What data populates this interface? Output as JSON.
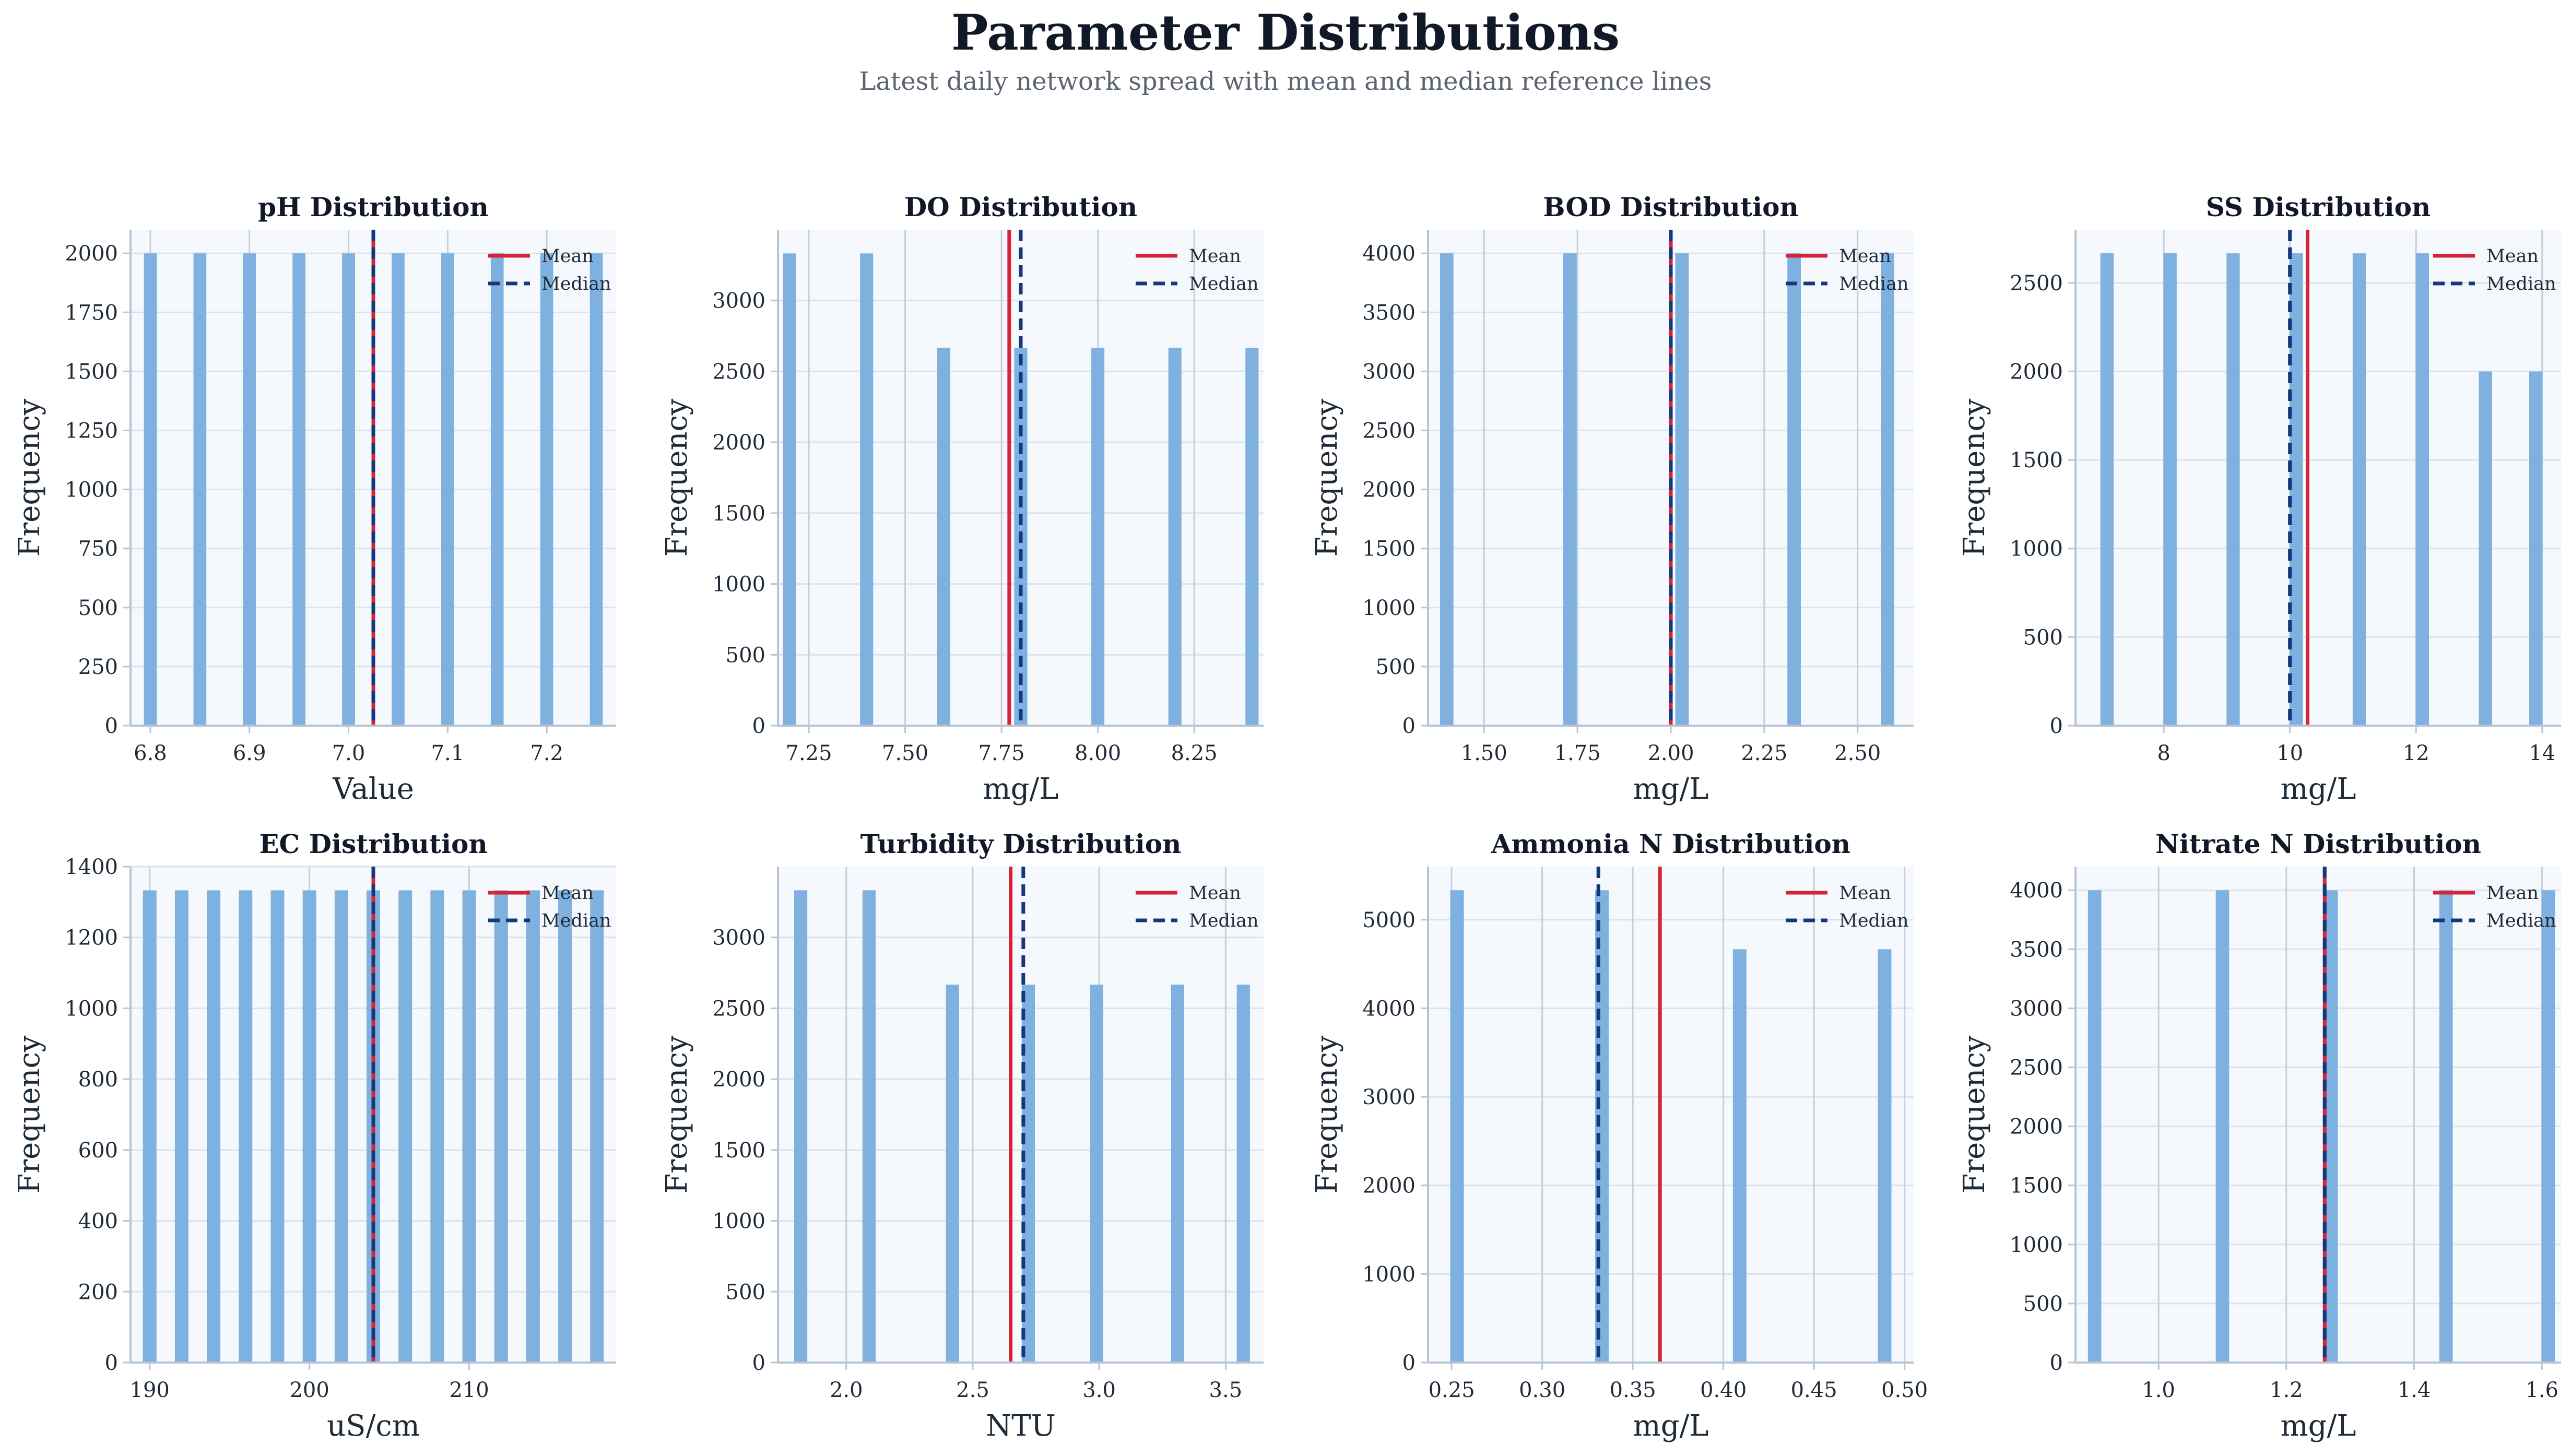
{
  "figure": {
    "title": "Parameter Distributions",
    "subtitle": "Latest daily network spread with mean and median reference lines"
  },
  "colors": {
    "bar": "#7eb0e0",
    "plot_bg": "#f5f9fe",
    "grid": "#dde3ea",
    "axis": "#b8c4d2",
    "mean": "#d62336",
    "median": "#14387a",
    "text": "#1f2a37"
  },
  "legend": {
    "mean_label": "Mean",
    "median_label": "Median",
    "placement": "top-right"
  },
  "ylabel": "Frequency",
  "chart_data": [
    {
      "type": "histogram",
      "title": "pH Distribution",
      "xlabel": "Value",
      "xlim": [
        6.78,
        7.27
      ],
      "ylim": [
        0,
        2100
      ],
      "xticks": [
        6.8,
        6.9,
        7.0,
        7.1,
        7.2
      ],
      "xtick_labels": [
        "6.8",
        "6.9",
        "7.0",
        "7.1",
        "7.2"
      ],
      "yticks": [
        0,
        250,
        500,
        750,
        1000,
        1250,
        1500,
        1750,
        2000
      ],
      "yticks_labels": [
        "0",
        "250",
        "500",
        "750",
        "1000",
        "1250",
        "1500",
        "1750",
        "2000"
      ],
      "bin_width": 0.013,
      "bars": [
        [
          6.8,
          2000
        ],
        [
          6.85,
          2000
        ],
        [
          6.9,
          2000
        ],
        [
          6.95,
          2000
        ],
        [
          7.0,
          2000
        ],
        [
          7.05,
          2000
        ],
        [
          7.1,
          2000
        ],
        [
          7.15,
          2000
        ],
        [
          7.2,
          2000
        ],
        [
          7.25,
          2000
        ]
      ],
      "mean": 7.025,
      "median": 7.025,
      "grid": true
    },
    {
      "type": "histogram",
      "title": "DO Distribution",
      "xlabel": "mg/L",
      "xlim": [
        7.17,
        8.43
      ],
      "ylim": [
        0,
        3500
      ],
      "xticks": [
        7.25,
        7.5,
        7.75,
        8.0,
        8.25
      ],
      "xtick_labels": [
        "7.25",
        "7.50",
        "7.75",
        "8.00",
        "8.25"
      ],
      "yticks": [
        0,
        500,
        1000,
        1500,
        2000,
        2500,
        3000
      ],
      "yticks_labels": [
        "0",
        "500",
        "1000",
        "1500",
        "2000",
        "2500",
        "3000"
      ],
      "bin_width": 0.034,
      "bars": [
        [
          7.2,
          3333
        ],
        [
          7.4,
          3333
        ],
        [
          7.6,
          2667
        ],
        [
          7.8,
          2667
        ],
        [
          8.0,
          2667
        ],
        [
          8.2,
          2667
        ],
        [
          8.4,
          2667
        ]
      ],
      "mean": 7.77,
      "median": 7.8,
      "grid": true
    },
    {
      "type": "histogram",
      "title": "BOD Distribution",
      "xlabel": "mg/L",
      "xlim": [
        1.35,
        2.65
      ],
      "ylim": [
        0,
        4200
      ],
      "xticks": [
        1.5,
        1.75,
        2.0,
        2.25,
        2.5
      ],
      "xtick_labels": [
        "1.50",
        "1.75",
        "2.00",
        "2.25",
        "2.50"
      ],
      "yticks": [
        0,
        500,
        1000,
        1500,
        2000,
        2500,
        3000,
        3500,
        4000
      ],
      "yticks_labels": [
        "0",
        "500",
        "1000",
        "1500",
        "2000",
        "2500",
        "3000",
        "3500",
        "4000"
      ],
      "bin_width": 0.036,
      "bars": [
        [
          1.4,
          4000
        ],
        [
          1.73,
          4000
        ],
        [
          2.03,
          4000
        ],
        [
          2.33,
          4000
        ],
        [
          2.58,
          4000
        ]
      ],
      "mean": 2.0,
      "median": 2.0,
      "grid": true
    },
    {
      "type": "histogram",
      "title": "SS Distribution",
      "xlabel": "mg/L",
      "xlim": [
        6.6,
        14.3
      ],
      "ylim": [
        0,
        2800
      ],
      "xticks": [
        8,
        10,
        12,
        14
      ],
      "xtick_labels": [
        "8",
        "10",
        "12",
        "14"
      ],
      "yticks": [
        0,
        500,
        1000,
        1500,
        2000,
        2500
      ],
      "yticks_labels": [
        "0",
        "500",
        "1000",
        "1500",
        "2000",
        "2500"
      ],
      "bin_width": 0.21,
      "bars": [
        [
          7.1,
          2667
        ],
        [
          8.1,
          2667
        ],
        [
          9.1,
          2667
        ],
        [
          10.1,
          2667
        ],
        [
          11.1,
          2667
        ],
        [
          12.1,
          2667
        ],
        [
          13.1,
          2000
        ],
        [
          13.9,
          2000
        ]
      ],
      "mean": 10.28,
      "median": 10.0,
      "grid": true
    },
    {
      "type": "histogram",
      "title": "EC Distribution",
      "xlabel": "uS/cm",
      "xlim": [
        188.8,
        219.2
      ],
      "ylim": [
        0,
        1400
      ],
      "xticks": [
        190,
        200,
        210
      ],
      "xtick_labels": [
        "190",
        "200",
        "210"
      ],
      "yticks": [
        0,
        200,
        400,
        600,
        800,
        1000,
        1200,
        1400
      ],
      "yticks_labels": [
        "0",
        "200",
        "400",
        "600",
        "800",
        "1000",
        "1200",
        "1400"
      ],
      "bin_width": 0.85,
      "bars": [
        [
          190.0,
          1333
        ],
        [
          192.0,
          1333
        ],
        [
          194.0,
          1333
        ],
        [
          196.0,
          1333
        ],
        [
          198.0,
          1333
        ],
        [
          200.0,
          1333
        ],
        [
          202.0,
          1333
        ],
        [
          204.0,
          1333
        ],
        [
          206.0,
          1333
        ],
        [
          208.0,
          1333
        ],
        [
          210.0,
          1333
        ],
        [
          212.0,
          1333
        ],
        [
          214.0,
          1333
        ],
        [
          216.0,
          1333
        ],
        [
          218.0,
          1333
        ]
      ],
      "mean": 204.0,
      "median": 204.0,
      "grid": true
    },
    {
      "type": "histogram",
      "title": "Turbidity Distribution",
      "xlabel": "NTU",
      "xlim": [
        1.73,
        3.65
      ],
      "ylim": [
        0,
        3500
      ],
      "xticks": [
        2.0,
        2.5,
        3.0,
        3.5
      ],
      "xtick_labels": [
        "2.0",
        "2.5",
        "3.0",
        "3.5"
      ],
      "yticks": [
        0,
        500,
        1000,
        1500,
        2000,
        2500,
        3000
      ],
      "yticks_labels": [
        "0",
        "500",
        "1000",
        "1500",
        "2000",
        "2500",
        "3000"
      ],
      "bin_width": 0.052,
      "bars": [
        [
          1.82,
          3333
        ],
        [
          2.09,
          3333
        ],
        [
          2.42,
          2667
        ],
        [
          2.72,
          2667
        ],
        [
          2.99,
          2667
        ],
        [
          3.31,
          2667
        ],
        [
          3.57,
          2667
        ]
      ],
      "mean": 2.65,
      "median": 2.7,
      "grid": true
    },
    {
      "type": "histogram",
      "title": "Ammonia N Distribution",
      "xlabel": "mg/L",
      "xlim": [
        0.237,
        0.505
      ],
      "ylim": [
        0,
        5600
      ],
      "xticks": [
        0.25,
        0.3,
        0.35,
        0.4,
        0.45,
        0.5
      ],
      "xtick_labels": [
        "0.25",
        "0.30",
        "0.35",
        "0.40",
        "0.45",
        "0.50"
      ],
      "yticks": [
        0,
        1000,
        2000,
        3000,
        4000,
        5000
      ],
      "yticks_labels": [
        "0",
        "1000",
        "2000",
        "3000",
        "4000",
        "5000"
      ],
      "bin_width": 0.0075,
      "bars": [
        [
          0.253,
          5333
        ],
        [
          0.333,
          5333
        ],
        [
          0.409,
          4667
        ],
        [
          0.489,
          4667
        ]
      ],
      "mean": 0.365,
      "median": 0.331,
      "grid": true
    },
    {
      "type": "histogram",
      "title": "Nitrate N Distribution",
      "xlabel": "mg/L",
      "xlim": [
        0.87,
        1.63
      ],
      "ylim": [
        0,
        4200
      ],
      "xticks": [
        1.0,
        1.2,
        1.4,
        1.6
      ],
      "xtick_labels": [
        "1.0",
        "1.2",
        "1.4",
        "1.6"
      ],
      "yticks": [
        0,
        500,
        1000,
        1500,
        2000,
        2500,
        3000,
        3500,
        4000
      ],
      "yticks_labels": [
        "0",
        "500",
        "1000",
        "1500",
        "2000",
        "2500",
        "3000",
        "3500",
        "4000"
      ],
      "bin_width": 0.021,
      "bars": [
        [
          0.9,
          4000
        ],
        [
          1.1,
          4000
        ],
        [
          1.27,
          4000
        ],
        [
          1.45,
          4000
        ],
        [
          1.61,
          4000
        ]
      ],
      "mean": 1.26,
      "median": 1.26,
      "grid": true
    }
  ]
}
